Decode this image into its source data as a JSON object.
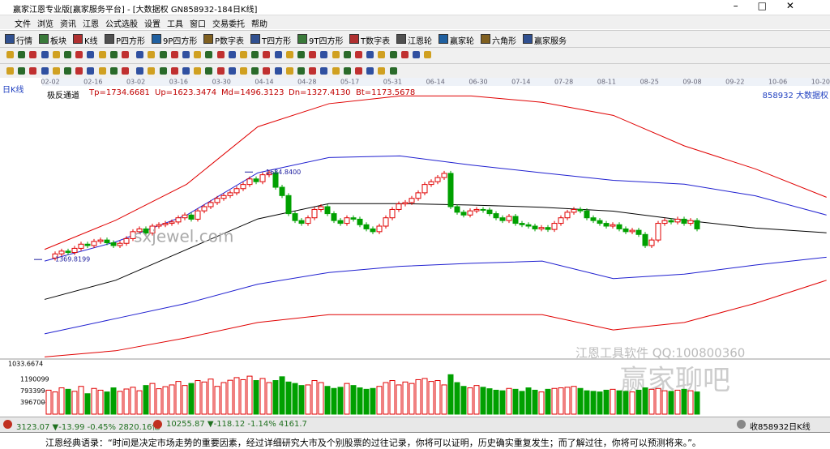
{
  "window": {
    "title": "赢家江恩专业版[赢家服务平台] - [大数据权 GN858932-184日K线]",
    "menu": [
      "文件",
      "浏览",
      "资讯",
      "江恩",
      "公式选股",
      "设置",
      "工具",
      "窗口",
      "交易委托",
      "帮助"
    ],
    "toolbar": [
      "行情",
      "板块",
      "K线",
      "P四方形",
      "9P四方形",
      "P数字表",
      "T四方形",
      "9T四方形",
      "T数字表",
      "江恩轮",
      "赢家轮",
      "六角形",
      "赢家服务"
    ],
    "chart_label": "日K线",
    "indicator": "极反通道",
    "params": [
      "Tp=1734.6681",
      "Up=1623.3474",
      "Md=1496.3123",
      "Dn=1327.4130",
      "Bt=1173.5678"
    ],
    "code": "858932 大数据权",
    "watermarks": [
      "sxjewel.com",
      "江恩工具软件 QQ:100800360",
      "赢家聊吧"
    ]
  },
  "chart_data": {
    "type": "candlestick",
    "x_ticks": [
      "02-02",
      "02-16",
      "03-02",
      "03-16",
      "03-30",
      "04-14",
      "04-28",
      "05-17",
      "05-31",
      "06-14",
      "06-30",
      "07-14",
      "07-28",
      "08-11",
      "08-25",
      "09-08",
      "09-22",
      "10-06",
      "10-20"
    ],
    "closes": [
      1375,
      1390,
      1400,
      1395,
      1410,
      1425,
      1420,
      1435,
      1440,
      1430,
      1420,
      1428,
      1445,
      1470,
      1480,
      1465,
      1490,
      1495,
      1500,
      1505,
      1520,
      1530,
      1515,
      1545,
      1560,
      1575,
      1590,
      1600,
      1610,
      1625,
      1640,
      1660,
      1650,
      1675,
      1682,
      1630,
      1600,
      1535,
      1510,
      1500,
      1520,
      1550,
      1560,
      1535,
      1510,
      1500,
      1520,
      1515,
      1495,
      1480,
      1470,
      1490,
      1520,
      1550,
      1570,
      1575,
      1590,
      1610,
      1640,
      1650,
      1665,
      1680,
      1560,
      1540,
      1530,
      1545,
      1550,
      1548,
      1535,
      1520,
      1510,
      1525,
      1500,
      1495,
      1490,
      1480,
      1485,
      1478,
      1500,
      1520,
      1540,
      1550,
      1545,
      1520,
      1510,
      1500,
      1490,
      1495,
      1480,
      1470,
      1475,
      1460,
      1420,
      1440,
      1500,
      1510,
      1505,
      1515,
      1500,
      1510,
      1480
    ],
    "bands": [
      {
        "color": "#e00000",
        "values": [
          1406,
          1511,
          1641,
          1848,
          1931,
          1959,
          1959,
          1936,
          1889,
          1779,
          1696,
          1594
        ]
      },
      {
        "color": "#2020d0",
        "values": [
          1364,
          1433,
          1530,
          1682,
          1737,
          1743,
          1710,
          1682,
          1655,
          1641,
          1599,
          1530
        ]
      },
      {
        "color": "#000000",
        "values": [
          1226,
          1295,
          1406,
          1516,
          1571,
          1571,
          1566,
          1558,
          1544,
          1511,
          1483,
          1466
        ]
      },
      {
        "color": "#2020d0",
        "values": [
          1102,
          1157,
          1212,
          1281,
          1323,
          1345,
          1356,
          1364,
          1301,
          1317,
          1350,
          1378
        ]
      },
      {
        "color": "#e00000",
        "values": [
          1019,
          1041,
          1088,
          1143,
          1171,
          1171,
          1171,
          1171,
          1116,
          1143,
          1212,
          1295
        ]
      }
    ],
    "ylim": [
      1020,
      1960
    ],
    "annotations": [
      {
        "value": 1684.84,
        "label": "1684.8400"
      },
      1369.8199
    ],
    "volume": {
      "values": [
        820000,
        760000,
        900000,
        850000,
        780000,
        950000,
        700000,
        880000,
        820000,
        760000,
        900000,
        780000,
        860000,
        920000,
        800000,
        980000,
        1050000,
        870000,
        940000,
        1000000,
        1120000,
        980000,
        1050000,
        1150000,
        1100000,
        1200000,
        950000,
        1080000,
        1160000,
        1250000,
        1180000,
        1300000,
        1150000,
        1220000,
        1080000,
        1150000,
        1280000,
        1100000,
        1050000,
        980000,
        1000000,
        1150000,
        1080000,
        950000,
        880000,
        920000,
        1050000,
        980000,
        900000,
        850000,
        880000,
        950000,
        1080000,
        1150000,
        1000000,
        1100000,
        1050000,
        1180000,
        1220000,
        1120000,
        1150000,
        1000000,
        1350000,
        1080000,
        950000,
        900000,
        980000,
        920000,
        870000,
        820000,
        800000,
        880000,
        850000,
        780000,
        900000,
        820000,
        760000,
        850000,
        880000,
        900000,
        920000,
        950000,
        880000,
        800000,
        780000,
        760000,
        820000,
        850000,
        800000,
        780000,
        760000,
        820000,
        900000,
        850000,
        880000,
        800000,
        780000,
        820000,
        850000,
        800000,
        760000
      ],
      "ylim": [
        0,
        1830000
      ],
      "yticks": [
        1190099,
        793399,
        396700
      ],
      "top_label": 1033.6674
    }
  },
  "status": [
    "3123.07 ▼-13.99 -0.45% 2820.16亿",
    "10255.87 ▼-118.12 -1.14% 4161.7",
    "收858932日K线"
  ],
  "quote": "江恩经典语录：“时间是决定市场走势的重要因素，经过详细研究大市及个别股票的过往记录，你将可以证明，历史确实重复发生；而了解过往，你将可以预测将来。”。"
}
